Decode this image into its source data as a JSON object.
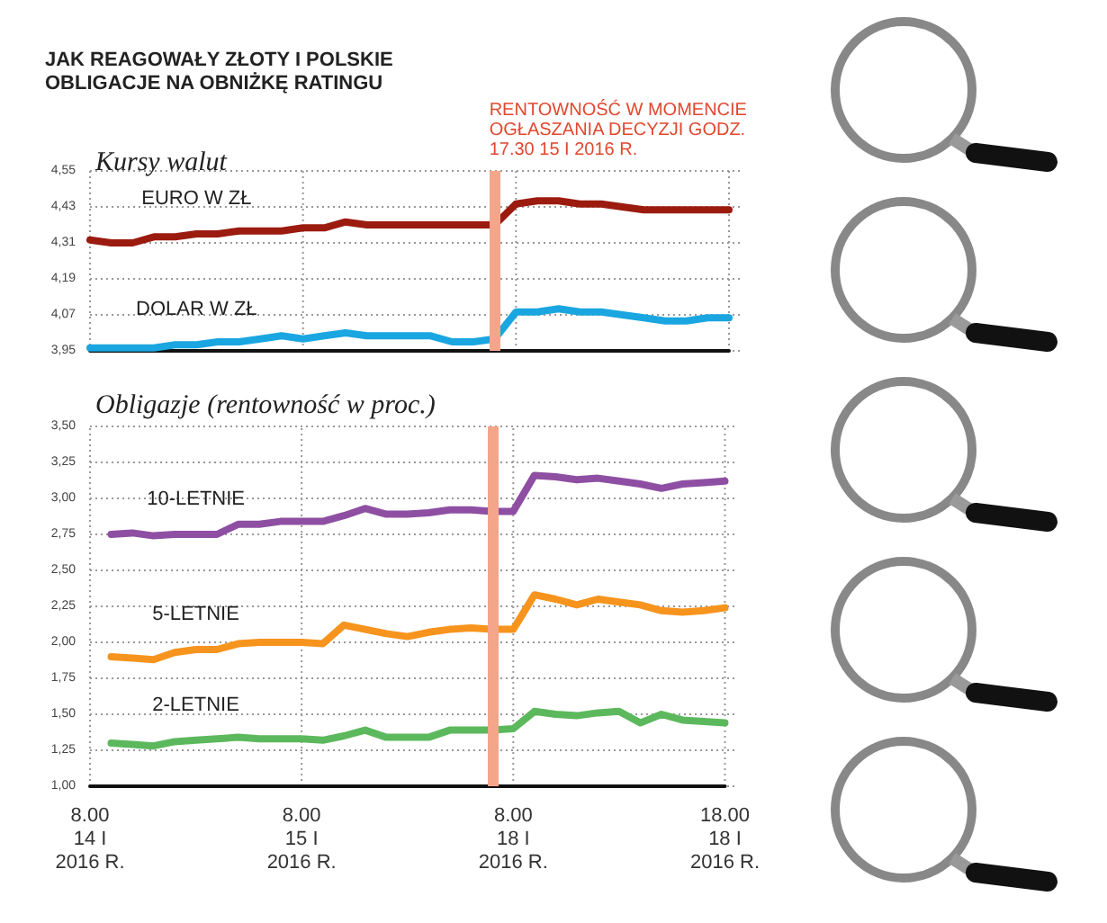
{
  "chart_data": [
    {
      "type": "line",
      "title": "JAK REAGOWAŁY ZŁOTY I POLSKIE OBLIGACJE NA OBNIŻKĘ RATINGU",
      "subtitle": "Kursy walut",
      "categories": [
        "8.00\n14 I\n2016 R.",
        null,
        null,
        null,
        null,
        null,
        null,
        null,
        null,
        null,
        "8.00\n15 I\n2016 R.",
        null,
        null,
        null,
        null,
        null,
        null,
        null,
        null,
        null,
        "8.00\n18 I\n2016 R.",
        null,
        null,
        null,
        null,
        null,
        null,
        null,
        null,
        null,
        "18.00\n18 I\n2016 R."
      ],
      "series": [
        {
          "name": "EURO W ZŁ",
          "color": "#9b1b0f",
          "values": [
            4.32,
            4.31,
            4.31,
            4.33,
            4.33,
            4.34,
            4.34,
            4.35,
            4.35,
            4.35,
            4.36,
            4.36,
            4.38,
            4.37,
            4.37,
            4.37,
            4.37,
            4.37,
            4.37,
            4.37,
            4.44,
            4.45,
            4.45,
            4.44,
            4.44,
            4.43,
            4.42,
            4.42,
            4.42,
            4.42,
            4.42
          ]
        },
        {
          "name": "DOLAR W ZŁ",
          "color": "#1aa6e0",
          "values": [
            3.96,
            3.96,
            3.96,
            3.96,
            3.97,
            3.97,
            3.98,
            3.98,
            3.99,
            4.0,
            3.99,
            4.0,
            4.01,
            4.0,
            4.0,
            4.0,
            4.0,
            3.98,
            3.98,
            3.99,
            4.08,
            4.08,
            4.09,
            4.08,
            4.08,
            4.07,
            4.06,
            4.05,
            4.05,
            4.06,
            4.06
          ]
        }
      ],
      "ylim": [
        3.95,
        4.55
      ],
      "yticks": [
        {
          "value": 3.95,
          "label": "3,95"
        },
        {
          "value": 4.07,
          "label": "4,07"
        },
        {
          "value": 4.19,
          "label": "4,19"
        },
        {
          "value": 4.31,
          "label": "4,31"
        },
        {
          "value": 4.43,
          "label": "4,43"
        },
        {
          "value": 4.55,
          "label": "4,55"
        }
      ],
      "tick_labels": "y",
      "grid": true,
      "legend": false,
      "marker": "none",
      "line_style": "solid",
      "annotations": [
        "RENTOWNOŚĆ W MOMENCIE OGŁASZANIA DECYZJI GODZ. 17.30 15 I 2016 R."
      ]
    },
    {
      "type": "line",
      "title": "Obligazje (rentowność w proc.)",
      "categories": [
        "8.00\n14 I\n2016 R.",
        null,
        null,
        null,
        null,
        null,
        null,
        null,
        null,
        null,
        "8.00\n15 I\n2016 R.",
        null,
        null,
        null,
        null,
        null,
        null,
        null,
        null,
        null,
        "8.00\n18 I\n2016 R.",
        null,
        null,
        null,
        null,
        null,
        null,
        null,
        null,
        null,
        "18.00\n18 I\n2016 R."
      ],
      "series": [
        {
          "name": "10-LETNIE",
          "color": "#8e4fa3",
          "values": [
            null,
            2.75,
            2.76,
            2.74,
            2.75,
            2.75,
            2.75,
            2.82,
            2.82,
            2.84,
            2.84,
            2.84,
            2.88,
            2.93,
            2.89,
            2.89,
            2.9,
            2.92,
            2.92,
            2.91,
            2.91,
            3.16,
            3.15,
            3.13,
            3.14,
            3.12,
            3.1,
            3.07,
            3.1,
            3.11,
            3.12
          ]
        },
        {
          "name": "5-LETNIE",
          "color": "#f7941d",
          "values": [
            null,
            1.9,
            1.89,
            1.88,
            1.93,
            1.95,
            1.95,
            1.99,
            2.0,
            2.0,
            2.0,
            1.99,
            2.12,
            2.09,
            2.06,
            2.04,
            2.07,
            2.09,
            2.1,
            2.09,
            2.09,
            2.33,
            2.3,
            2.26,
            2.3,
            2.28,
            2.26,
            2.22,
            2.21,
            2.22,
            2.24
          ]
        },
        {
          "name": "2-LETNIE",
          "color": "#5cb85c",
          "values": [
            null,
            1.3,
            1.29,
            1.28,
            1.31,
            1.32,
            1.33,
            1.34,
            1.33,
            1.33,
            1.33,
            1.32,
            1.35,
            1.39,
            1.34,
            1.34,
            1.34,
            1.39,
            1.39,
            1.39,
            1.4,
            1.52,
            1.5,
            1.49,
            1.51,
            1.52,
            1.44,
            1.5,
            1.46,
            1.45,
            1.44
          ]
        }
      ],
      "ylim": [
        1.0,
        3.5
      ],
      "yticks": [
        {
          "value": 1.0,
          "label": "1,00"
        },
        {
          "value": 1.25,
          "label": "1,25"
        },
        {
          "value": 1.5,
          "label": "1,50"
        },
        {
          "value": 1.75,
          "label": "1,75"
        },
        {
          "value": 2.0,
          "label": "2,00"
        },
        {
          "value": 2.25,
          "label": "2,25"
        },
        {
          "value": 2.5,
          "label": "2,50"
        },
        {
          "value": 2.75,
          "label": "2,75"
        },
        {
          "value": 3.0,
          "label": "3,00"
        },
        {
          "value": 3.25,
          "label": "3,25"
        },
        {
          "value": 3.5,
          "label": "3,50"
        }
      ],
      "grid": true,
      "legend": false,
      "marker": "none",
      "line_style": "solid"
    }
  ]
}
